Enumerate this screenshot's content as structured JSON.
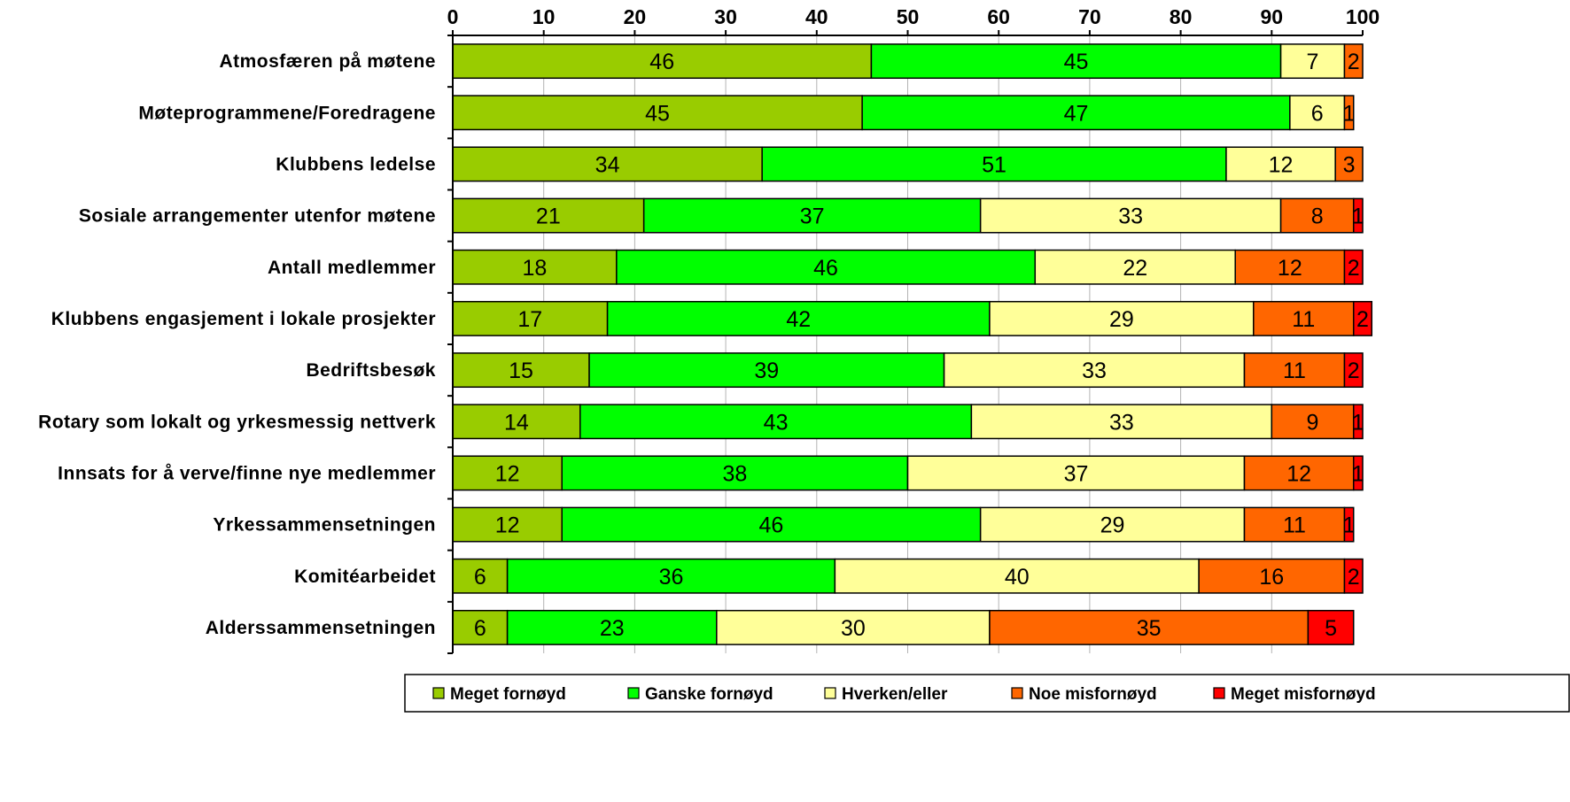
{
  "chart_data": {
    "type": "bar",
    "orientation": "horizontal",
    "stacked": true,
    "xlim": [
      0,
      100
    ],
    "x_ticks": [
      "0",
      "10",
      "20",
      "30",
      "40",
      "50",
      "60",
      "70",
      "80",
      "90",
      "100"
    ],
    "x_axis_position": "top",
    "grid": true,
    "legend_position": "bottom",
    "categories": [
      "Atmosfæren på møtene",
      "Møteprogrammene/Foredragene",
      "Klubbens ledelse",
      "Sosiale arrangementer utenfor møtene",
      "Antall medlemmer",
      "Klubbens engasjement i lokale prosjekter",
      "Bedriftsbesøk",
      "Rotary som lokalt og yrkesmessig nettverk",
      "Innsats for å verve/finne nye medlemmer",
      "Yrkessammensetningen",
      "Komitéarbeidet",
      "Alderssammensetningen"
    ],
    "series": [
      {
        "name": "Meget fornøyd",
        "color": "#99cc00",
        "values": [
          46,
          45,
          34,
          21,
          18,
          17,
          15,
          14,
          12,
          12,
          6,
          6
        ]
      },
      {
        "name": "Ganske fornøyd",
        "color": "#00ff00",
        "values": [
          45,
          47,
          51,
          37,
          46,
          42,
          39,
          43,
          38,
          46,
          36,
          23
        ]
      },
      {
        "name": "Hverken/eller",
        "color": "#ffff99",
        "values": [
          7,
          6,
          12,
          33,
          22,
          29,
          33,
          33,
          37,
          29,
          40,
          30
        ]
      },
      {
        "name": "Noe misfornøyd",
        "color": "#ff6600",
        "values": [
          2,
          1,
          3,
          8,
          12,
          11,
          11,
          9,
          12,
          11,
          16,
          35
        ]
      },
      {
        "name": "Meget misfornøyd",
        "color": "#ff0000",
        "values": [
          0,
          0,
          0,
          1,
          2,
          2,
          2,
          1,
          1,
          1,
          2,
          5
        ]
      }
    ]
  }
}
